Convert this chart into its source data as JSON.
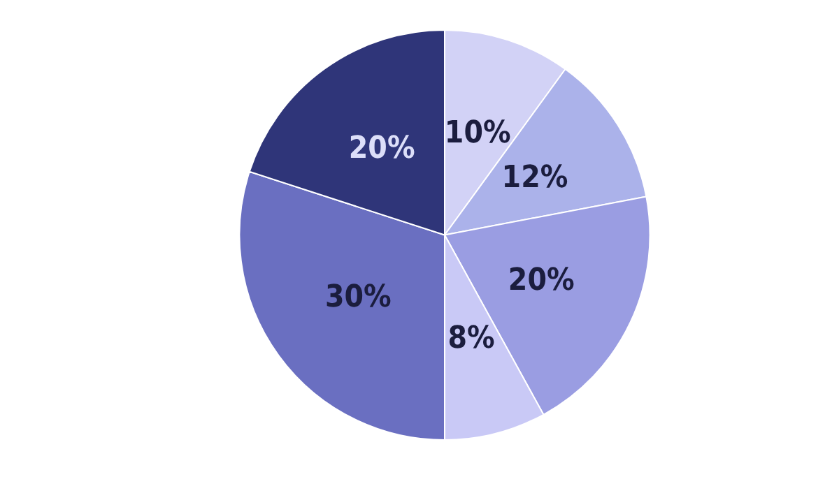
{
  "chart_data": {
    "type": "pie",
    "categories": [
      null,
      null,
      null,
      null,
      null,
      null
    ],
    "values": [
      10,
      12,
      20,
      8,
      30,
      20
    ],
    "colors": [
      "#d2d2f6",
      "#abb2ea",
      "#9a9de2",
      "#c9c9f6",
      "#6a6fc1",
      "#2f3579"
    ],
    "value_labels": [
      "10%",
      "12%",
      "20%",
      "8%",
      "30%",
      "20%"
    ]
  }
}
